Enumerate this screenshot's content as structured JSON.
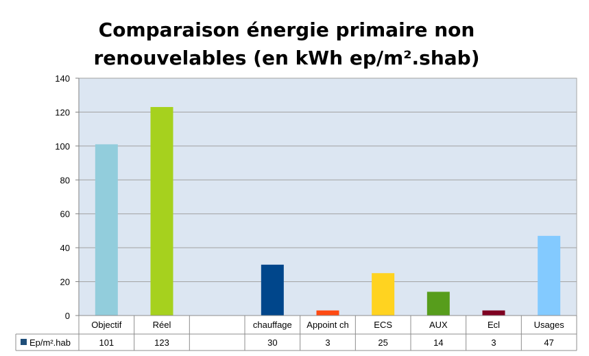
{
  "chart_data": {
    "type": "bar",
    "title_lines": [
      "Comparaison énergie primaire non",
      "renouvelables (en kWh ep/m².shab)"
    ],
    "categories": [
      "Objectif",
      "Réel",
      "",
      "chauffage",
      "Appoint ch",
      "ECS",
      "AUX",
      "Ecl",
      "Usages"
    ],
    "series": [
      {
        "name": "Ep/m².hab",
        "values": [
          101,
          123,
          null,
          30,
          3,
          25,
          14,
          3,
          47
        ],
        "value_labels": [
          "101",
          "123",
          "",
          "30",
          "3",
          "25",
          "14",
          "3",
          "47"
        ],
        "bar_colors": [
          "#92CDDC",
          "#A6D11E",
          "#FFFFFF",
          "#00468B",
          "#FF4A12",
          "#FFD320",
          "#579D1C",
          "#7E0021",
          "#83CAFF"
        ]
      }
    ],
    "ylim": [
      0,
      140
    ],
    "y_ticks": [
      0,
      20,
      40,
      60,
      80,
      100,
      120,
      140
    ],
    "grid": true,
    "legend": "data-table",
    "plot_background": "#DCE6F2",
    "grid_color": "#A0A0A0",
    "legend_key_color": "#1F4E79"
  }
}
